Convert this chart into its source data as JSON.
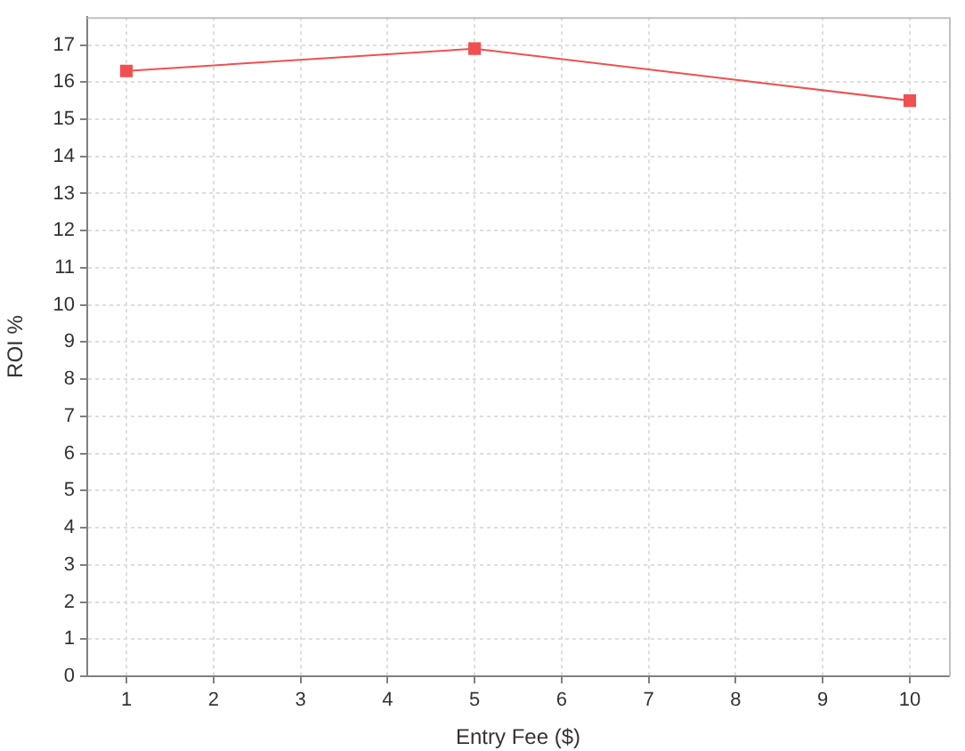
{
  "chart_data": {
    "type": "line",
    "xlabel": "Entry Fee ($)",
    "ylabel": "ROI %",
    "x": [
      1,
      5,
      10
    ],
    "series": [
      {
        "color": "#f05050",
        "values": [
          16.3,
          16.9,
          15.5
        ]
      }
    ],
    "xlim": [
      0.55,
      10.45
    ],
    "ylim": [
      0,
      17.75
    ],
    "xticks": [
      1,
      2,
      3,
      4,
      5,
      6,
      7,
      8,
      9,
      10
    ],
    "yticks": [
      0,
      1,
      2,
      3,
      4,
      5,
      6,
      7,
      8,
      9,
      10,
      11,
      12,
      13,
      14,
      15,
      16,
      17
    ],
    "grid": true,
    "marker": "square",
    "line_style": "solid"
  }
}
